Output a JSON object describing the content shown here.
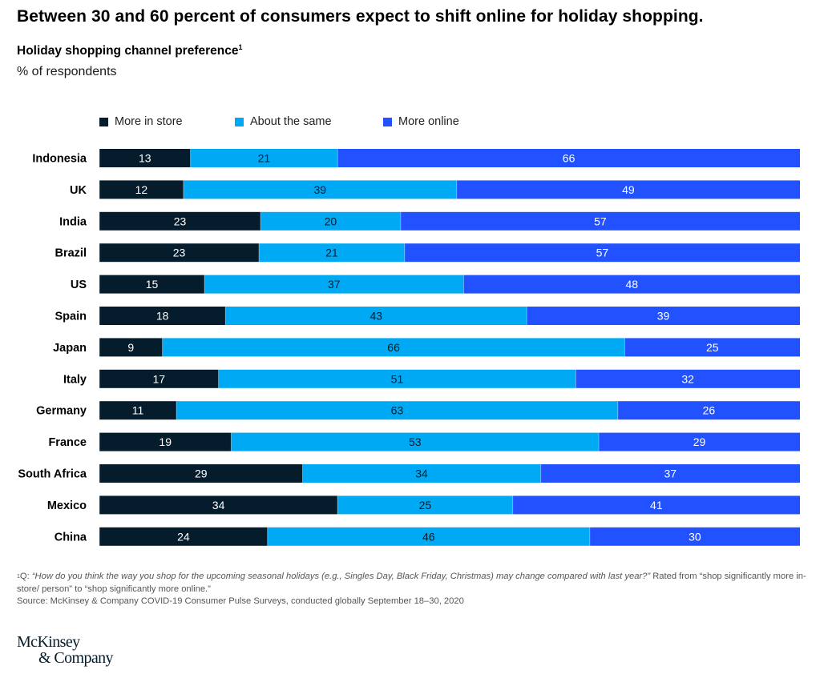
{
  "header": {
    "title": "Between 30 and 60 percent of consumers expect to shift online for holiday shopping.",
    "subtitle": "Holiday shopping channel preference",
    "subtitle_footnote_marker": "1",
    "unit": "% of respondents"
  },
  "colors": {
    "more_in_store": "#051c2c",
    "about_the_same": "#00a9f4",
    "more_online": "#2251ff",
    "label_light": "#ffffff",
    "label_dark": "#051c2c"
  },
  "chart_data": {
    "type": "bar",
    "orientation": "horizontal",
    "stacked": true,
    "normalized_to": 100,
    "title": "Holiday shopping channel preference",
    "xlabel": "",
    "ylabel": "% of respondents",
    "xlim": [
      0,
      100
    ],
    "grid": false,
    "legend_position": "top",
    "categories": [
      "Indonesia",
      "UK",
      "India",
      "Brazil",
      "US",
      "Spain",
      "Japan",
      "Italy",
      "Germany",
      "France",
      "South Africa",
      "Mexico",
      "China"
    ],
    "series": [
      {
        "name": "More in store",
        "color": "#051c2c",
        "label_color": "#ffffff",
        "values": [
          13,
          12,
          23,
          23,
          15,
          18,
          9,
          17,
          11,
          19,
          29,
          34,
          24
        ]
      },
      {
        "name": "About the same",
        "color": "#00a9f4",
        "label_color": "#051c2c",
        "values": [
          21,
          39,
          20,
          21,
          37,
          43,
          66,
          51,
          63,
          53,
          34,
          25,
          46
        ]
      },
      {
        "name": "More online",
        "color": "#2251ff",
        "label_color": "#ffffff",
        "values": [
          66,
          49,
          57,
          57,
          48,
          39,
          25,
          32,
          26,
          29,
          37,
          41,
          30
        ]
      }
    ]
  },
  "footnote": {
    "marker": "1",
    "prefix": "Q: ",
    "question": "“How do you think the way you shop for the upcoming seasonal holidays (e.g., Singles Day, Black Friday, Christmas) may change compared with last year?”",
    "rating": " Rated from “shop significantly more in-store/ person” to “shop significantly more online.”",
    "source": "Source: McKinsey & Company COVID-19 Consumer Pulse Surveys, conducted globally September 18–30, 2020"
  },
  "logo": {
    "line1": "McKinsey",
    "line2": "& Company"
  }
}
